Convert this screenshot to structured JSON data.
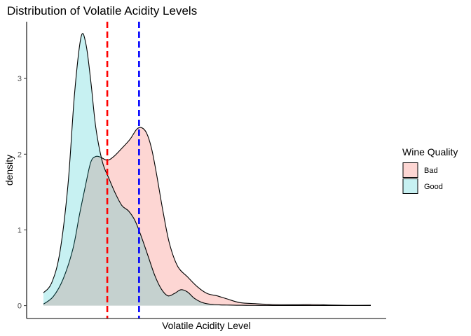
{
  "chart_data": {
    "type": "area",
    "title": "Distribution of Volatile Acidity Levels",
    "xlabel": "Volatile Acidity Level",
    "ylabel": "density",
    "xlim": [
      0,
      1
    ],
    "ylim": [
      -0.17,
      3.75
    ],
    "yticks": [
      0,
      1,
      2,
      3
    ],
    "x_tick_labels_shown": false,
    "grid": false,
    "legend": {
      "title": "Wine Quality",
      "position": "right",
      "entries": [
        "Bad",
        "Good"
      ]
    },
    "series": [
      {
        "name": "Bad",
        "fill": "#f8766d",
        "fill_opacity": 0.3,
        "x": [
          0.0,
          0.03,
          0.06,
          0.09,
          0.11,
          0.13,
          0.145,
          0.16,
          0.175,
          0.195,
          0.215,
          0.24,
          0.265,
          0.285,
          0.3,
          0.315,
          0.33,
          0.345,
          0.365,
          0.385,
          0.41,
          0.44,
          0.47,
          0.5,
          0.53,
          0.56,
          0.6,
          0.65,
          0.7,
          0.76,
          0.82,
          0.88,
          0.94,
          1.0
        ],
        "y": [
          0.02,
          0.12,
          0.35,
          0.75,
          1.2,
          1.62,
          1.9,
          1.97,
          1.96,
          1.92,
          1.97,
          2.08,
          2.2,
          2.33,
          2.35,
          2.28,
          2.08,
          1.75,
          1.25,
          0.82,
          0.52,
          0.38,
          0.25,
          0.16,
          0.13,
          0.09,
          0.04,
          0.025,
          0.015,
          0.012,
          0.015,
          0.008,
          0.004,
          0.005
        ]
      },
      {
        "name": "Good",
        "fill": "#00bfc4",
        "fill_opacity": 0.22,
        "x": [
          0.0,
          0.025,
          0.05,
          0.075,
          0.095,
          0.115,
          0.13,
          0.145,
          0.16,
          0.18,
          0.2,
          0.22,
          0.24,
          0.26,
          0.28,
          0.3,
          0.32,
          0.34,
          0.36,
          0.38,
          0.4,
          0.42,
          0.44,
          0.46,
          0.48,
          0.5,
          0.52,
          0.54,
          0.56,
          0.58,
          0.6,
          0.62,
          0.66,
          0.7,
          0.76,
          0.82,
          0.88,
          0.94,
          1.0
        ],
        "y": [
          0.17,
          0.3,
          0.7,
          1.6,
          2.8,
          3.55,
          3.45,
          2.95,
          2.35,
          1.9,
          1.68,
          1.48,
          1.32,
          1.25,
          1.12,
          0.9,
          0.65,
          0.4,
          0.22,
          0.13,
          0.16,
          0.21,
          0.18,
          0.1,
          0.05,
          0.025,
          0.015,
          0.01,
          0.008,
          0.006,
          0.005,
          0.004,
          0.003,
          0.002,
          0.002,
          0.001,
          0.001,
          0.001,
          0.001
        ]
      }
    ],
    "vlines": [
      {
        "x": 0.195,
        "color": "#ff0000",
        "style": "dashed"
      },
      {
        "x": 0.292,
        "color": "#0000ff",
        "style": "dashed"
      }
    ]
  }
}
